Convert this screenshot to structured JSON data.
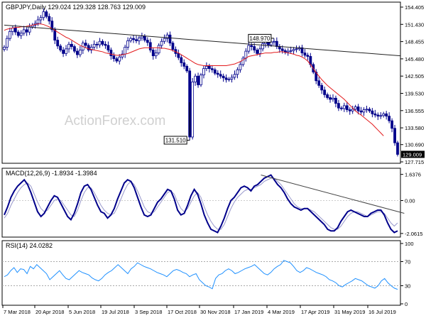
{
  "chart_data": [
    {
      "type": "candlestick",
      "name": "GBPJPY.Daily",
      "header": {
        "symbol": "GBPJPY,Daily",
        "ohlc": "129.024 129.328 128.763 129.009"
      },
      "ylim": [
        127.715,
        154.405
      ],
      "y_ticks": [
        "154.405",
        "151.430",
        "148.455",
        "145.480",
        "142.505",
        "139.530",
        "136.555",
        "133.580",
        "130.690",
        "127.715"
      ],
      "last_price": "129.009",
      "annotations": [
        {
          "label": "148.970",
          "value": 148.97,
          "date_index": 96
        },
        {
          "label": "131.510",
          "value": 131.51,
          "date_index": 66
        }
      ],
      "trendline": {
        "start": [
          0,
          151.3
        ],
        "end": [
          141,
          146.0
        ]
      },
      "watermark": "ActionForex.com",
      "close_series": [
        147.5,
        149.0,
        150.2,
        150.8,
        150.1,
        149.5,
        149.9,
        150.5,
        150.1,
        151.0,
        151.3,
        151.6,
        152.2,
        152.6,
        153.6,
        152.8,
        152.0,
        150.5,
        148.7,
        147.7,
        147.0,
        146.4,
        147.2,
        148.0,
        147.6,
        146.8,
        146.2,
        147.0,
        148.2,
        147.8,
        147.0,
        147.5,
        148.0,
        147.9,
        148.5,
        148.0,
        147.8,
        147.0,
        146.0,
        145.5,
        145.1,
        145.8,
        146.3,
        147.5,
        148.6,
        149.0,
        148.8,
        148.6,
        149.1,
        149.4,
        148.7,
        148.3,
        147.0,
        146.0,
        146.5,
        147.8,
        148.5,
        149.0,
        149.6,
        148.2,
        147.1,
        146.4,
        145.7,
        144.8,
        144.2,
        143.4,
        132.0,
        141.5,
        142.5,
        141.0,
        142.7,
        143.8,
        144.2,
        143.8,
        143.6,
        143.0,
        142.8,
        142.5,
        142.2,
        141.9,
        142.0,
        142.3,
        142.8,
        143.6,
        144.5,
        145.6,
        146.8,
        147.8,
        147.6,
        147.0,
        146.4,
        147.2,
        148.1,
        148.5,
        147.9,
        148.4,
        148.5,
        147.6,
        147.2,
        146.9,
        146.6,
        146.8,
        146.9,
        147.1,
        147.2,
        147.4,
        146.5,
        146.1,
        145.9,
        144.5,
        143.2,
        141.7,
        140.9,
        140.1,
        139.3,
        138.8,
        138.5,
        138.7,
        137.8,
        137.0,
        136.9,
        137.4,
        136.7,
        136.5,
        136.8,
        137.2,
        136.5,
        136.3,
        136.7,
        136.8,
        136.5,
        136.0,
        135.8,
        135.6,
        135.7,
        136.0,
        135.6,
        134.8,
        133.5,
        131.0,
        129.0
      ],
      "ma_series": [
        150.4,
        150.6,
        150.7,
        150.8,
        150.9,
        150.9,
        151.0,
        151.0,
        151.1,
        151.2,
        151.3,
        151.4,
        151.5,
        151.5,
        151.4,
        151.2,
        151.0,
        150.7,
        150.4,
        150.1,
        149.8,
        149.5,
        149.2,
        149.0,
        148.7,
        148.4,
        148.1,
        147.8,
        147.6,
        147.4,
        147.2,
        147.1,
        147.0,
        146.9,
        146.8,
        146.7,
        146.5,
        146.4,
        146.3,
        146.2,
        146.1,
        146.1,
        146.2,
        146.3,
        146.4,
        146.6,
        146.8,
        147.0,
        147.2,
        147.3,
        147.4,
        147.4,
        147.4,
        147.4,
        147.4,
        147.4,
        147.3,
        147.3,
        147.2,
        147.1,
        146.9,
        146.7,
        146.5,
        146.2,
        145.9,
        145.6,
        145.3,
        145.0,
        144.7,
        144.5,
        144.4,
        144.3,
        144.3,
        144.3,
        144.3,
        144.3,
        144.3,
        144.3,
        144.3,
        144.3,
        144.4,
        144.5,
        144.6,
        144.8,
        145.0,
        145.3,
        145.6,
        145.9,
        146.0,
        146.1,
        146.2,
        146.3,
        146.4,
        146.5,
        146.5,
        146.5,
        146.6,
        146.6,
        146.7,
        146.7,
        146.6,
        146.5,
        146.4,
        146.3,
        146.1,
        146.0,
        145.8,
        145.5,
        145.1,
        144.5,
        143.8,
        143.1,
        142.5,
        141.9,
        141.4,
        140.9,
        140.5,
        140.1,
        139.7,
        139.3,
        138.9,
        138.5,
        138.0,
        137.5,
        137.0,
        136.5,
        136.1,
        135.8,
        135.4,
        135.0,
        134.6,
        134.2,
        133.7,
        133.2,
        132.7,
        132.2
      ]
    },
    {
      "type": "line",
      "name": "MACD(12,26,9)",
      "header": {
        "label": "MACD(12,26,9)",
        "values": "-1.8934 -1.3984"
      },
      "ylim": [
        -2.2,
        1.8
      ],
      "y_ticks": [
        "1.6376",
        "0.00",
        "-2.0615"
      ],
      "series": [
        {
          "name": "MACD",
          "color": "#00008b",
          "values": [
            -0.9,
            -0.4,
            0.2,
            0.6,
            0.9,
            1.1,
            1.3,
            1.0,
            0.5,
            -0.1,
            -0.7,
            -1.0,
            -0.8,
            -0.4,
            0.0,
            0.3,
            0.2,
            -0.2,
            -0.6,
            -1.0,
            -1.2,
            -0.8,
            -0.2,
            0.5,
            0.9,
            1.0,
            0.7,
            0.2,
            -0.3,
            -0.7,
            -0.8,
            -1.1,
            -0.9,
            -0.5,
            0.1,
            0.6,
            1.1,
            1.3,
            1.2,
            0.8,
            0.2,
            -0.4,
            -0.9,
            -1.0,
            -0.9,
            -0.5,
            -0.1,
            0.1,
            0.4,
            0.7,
            0.6,
            0.1,
            -0.6,
            -0.9,
            -0.8,
            -0.3,
            0.3,
            0.7,
            0.4,
            -0.2,
            -0.9,
            -1.4,
            -1.8,
            -1.9,
            -2.0,
            -1.6,
            -1.1,
            -0.5,
            0.0,
            0.2,
            0.5,
            0.8,
            0.9,
            0.8,
            0.6,
            0.9,
            1.0,
            1.2,
            1.4,
            1.5,
            1.6,
            1.3,
            1.0,
            0.8,
            0.5,
            0.1,
            -0.2,
            -0.4,
            -0.5,
            -0.6,
            -0.5,
            -0.5,
            -0.7,
            -0.9,
            -1.1,
            -1.3,
            -1.5,
            -1.8,
            -1.9,
            -1.9,
            -1.7,
            -1.3,
            -1.0,
            -0.7,
            -0.6,
            -0.7,
            -0.8,
            -0.9,
            -1.0,
            -1.0,
            -0.8,
            -0.7,
            -0.6,
            -0.6,
            -0.9,
            -1.4,
            -1.8,
            -2.0,
            -1.9
          ]
        },
        {
          "name": "Signal",
          "color": "#9999cc",
          "values": [
            -1.1,
            -0.8,
            -0.3,
            0.1,
            0.5,
            0.8,
            1.0,
            1.1,
            0.9,
            0.4,
            -0.1,
            -0.5,
            -0.7,
            -0.6,
            -0.3,
            0.0,
            0.1,
            0.0,
            -0.3,
            -0.6,
            -0.9,
            -1.0,
            -0.6,
            0.0,
            0.5,
            0.8,
            0.8,
            0.5,
            0.1,
            -0.3,
            -0.6,
            -0.8,
            -0.9,
            -0.8,
            -0.4,
            0.1,
            0.6,
            1.0,
            1.2,
            1.0,
            0.6,
            0.1,
            -0.4,
            -0.7,
            -0.8,
            -0.7,
            -0.4,
            -0.1,
            0.2,
            0.5,
            0.6,
            0.4,
            -0.1,
            -0.5,
            -0.7,
            -0.5,
            -0.1,
            0.3,
            0.5,
            0.2,
            -0.4,
            -0.9,
            -1.3,
            -1.6,
            -1.8,
            -1.8,
            -1.5,
            -1.0,
            -0.5,
            -0.1,
            0.2,
            0.4,
            0.6,
            0.7,
            0.7,
            0.8,
            0.9,
            1.0,
            1.2,
            1.3,
            1.4,
            1.4,
            1.2,
            1.0,
            0.7,
            0.4,
            0.1,
            -0.2,
            -0.4,
            -0.5,
            -0.5,
            -0.5,
            -0.6,
            -0.7,
            -0.9,
            -1.1,
            -1.3,
            -1.5,
            -1.7,
            -1.8,
            -1.8,
            -1.6,
            -1.3,
            -1.0,
            -0.8,
            -0.7,
            -0.7,
            -0.8,
            -0.9,
            -1.0,
            -0.9,
            -0.8,
            -0.7,
            -0.7,
            -0.8,
            -1.1,
            -1.4,
            -1.6,
            -1.4
          ]
        }
      ],
      "trendline": {
        "start": [
          77,
          1.6
        ],
        "end": [
          120,
          -0.8
        ]
      }
    },
    {
      "type": "line",
      "name": "RSI(14)",
      "header": {
        "label": "RSI(14)",
        "value": "24.0282"
      },
      "ylim": [
        0,
        100
      ],
      "y_ticks": [
        "100",
        "70",
        "30",
        "0"
      ],
      "series": [
        {
          "name": "RSI",
          "color": "#1e90ff",
          "values": [
            45,
            48,
            55,
            60,
            52,
            58,
            57,
            50,
            62,
            58,
            65,
            60,
            55,
            50,
            40,
            45,
            50,
            55,
            48,
            42,
            40,
            45,
            50,
            55,
            52,
            50,
            48,
            43,
            40,
            38,
            42,
            48,
            52,
            55,
            60,
            65,
            60,
            55,
            50,
            58,
            62,
            68,
            65,
            62,
            60,
            58,
            55,
            52,
            50,
            48,
            45,
            50,
            55,
            57,
            55,
            52,
            50,
            45,
            48,
            50,
            40,
            35,
            30,
            28,
            25,
            42,
            48,
            50,
            55,
            58,
            55,
            50,
            52,
            55,
            58,
            60,
            62,
            65,
            60,
            55,
            50,
            48,
            52,
            58,
            62,
            65,
            72,
            70,
            68,
            62,
            55,
            52,
            55,
            60,
            58,
            55,
            52,
            50,
            48,
            45,
            40,
            38,
            35,
            30,
            28,
            32,
            35,
            38,
            42,
            40,
            38,
            34,
            30,
            28,
            26,
            30,
            38,
            42,
            35,
            30,
            26,
            24
          ]
        }
      ],
      "levels": [
        70,
        30
      ]
    }
  ],
  "x_axis": {
    "labels": [
      "7 Mar 2018",
      "20 Apr 2018",
      "5 Jun 2018",
      "19 Jul 2018",
      "3 Sep 2018",
      "17 Oct 2018",
      "30 Nov 2018",
      "17 Jan 2019",
      "4 Mar 2019",
      "17 Apr 2019",
      "31 May 2019",
      "16 Jul 2019"
    ]
  }
}
